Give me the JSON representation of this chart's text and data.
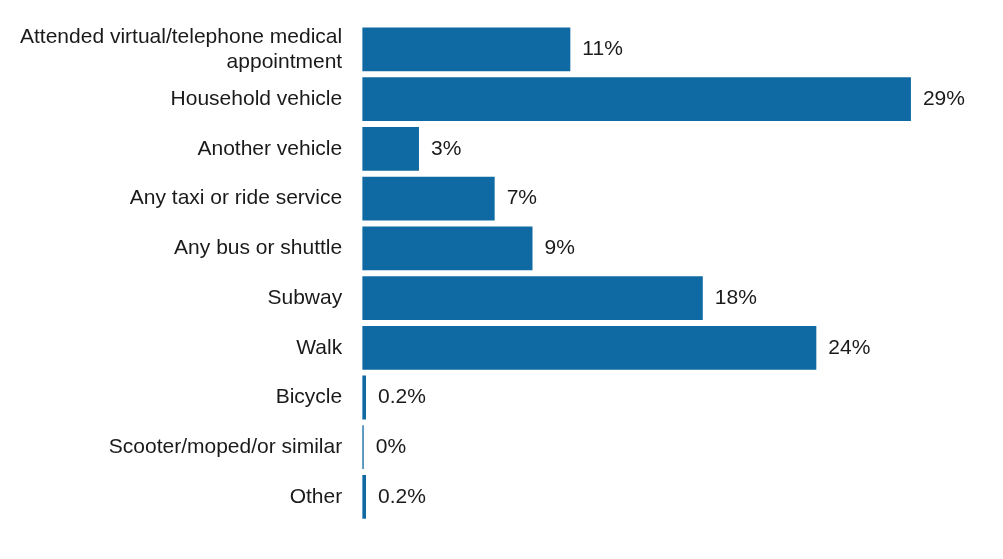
{
  "chart_data": {
    "type": "bar",
    "orientation": "horizontal",
    "categories": [
      "Attended virtual/telephone medical appointment",
      "Household vehicle",
      "Another vehicle",
      "Any taxi or ride service",
      "Any bus or shuttle",
      "Subway",
      "Walk",
      "Bicycle",
      "Scooter/moped/or similar",
      "Other"
    ],
    "values": [
      11,
      29,
      3,
      7,
      9,
      18,
      24,
      0.2,
      0,
      0.2
    ],
    "value_labels": [
      "11%",
      "29%",
      "3%",
      "7%",
      "9%",
      "18%",
      "24%",
      "0.2%",
      "0%",
      "0.2%"
    ],
    "color": "#0f6aa3"
  }
}
